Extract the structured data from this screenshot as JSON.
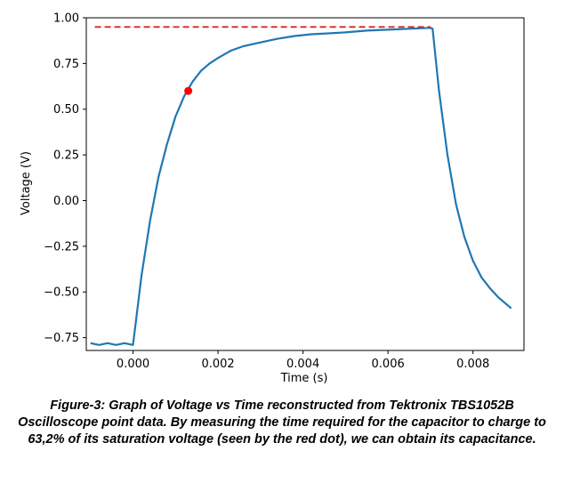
{
  "chart_data": {
    "type": "line",
    "title": "",
    "xlabel": "Time (s)",
    "ylabel": "Voltage (V)",
    "xlim": [
      -0.0011,
      0.0092
    ],
    "ylim": [
      -0.82,
      1.0
    ],
    "x_ticks": [
      0.0,
      0.002,
      0.004,
      0.006,
      0.008
    ],
    "x_tick_labels": [
      "0.000",
      "0.002",
      "0.004",
      "0.006",
      "0.008"
    ],
    "y_ticks": [
      -0.75,
      -0.5,
      -0.25,
      0.0,
      0.25,
      0.5,
      0.75,
      1.0
    ],
    "y_tick_labels": [
      "−0.75",
      "−0.50",
      "−0.25",
      "0.00",
      "0.25",
      "0.50",
      "0.75",
      "1.00"
    ],
    "grid": false,
    "series": [
      {
        "color": "#1f77b4",
        "x": [
          -0.001,
          -0.0008,
          -0.0006,
          -0.0004,
          -0.0002,
          0.0,
          0.0002,
          0.0004,
          0.0006,
          0.0008,
          0.001,
          0.0012,
          0.0014,
          0.0016,
          0.0018,
          0.002,
          0.0023,
          0.0026,
          0.003,
          0.0034,
          0.0038,
          0.0042,
          0.0046,
          0.005,
          0.0055,
          0.006,
          0.0065,
          0.007,
          0.00705,
          0.0072,
          0.0074,
          0.0076,
          0.0078,
          0.008,
          0.0082,
          0.0084,
          0.0086,
          0.0088,
          0.0089
        ],
        "y": [
          -0.78,
          -0.79,
          -0.78,
          -0.79,
          -0.78,
          -0.79,
          -0.41,
          -0.11,
          0.13,
          0.31,
          0.46,
          0.57,
          0.65,
          0.71,
          0.75,
          0.78,
          0.82,
          0.845,
          0.865,
          0.885,
          0.9,
          0.91,
          0.915,
          0.92,
          0.93,
          0.935,
          0.94,
          0.945,
          0.94,
          0.6,
          0.25,
          -0.02,
          -0.2,
          -0.33,
          -0.42,
          -0.48,
          -0.53,
          -0.57,
          -0.59
        ]
      },
      {
        "color": "#d62728",
        "style": "dashed",
        "x": [
          -0.0009,
          0.007
        ],
        "y": [
          0.95,
          0.95
        ]
      }
    ],
    "markers": [
      {
        "color": "#ff0000",
        "x": 0.0013,
        "y": 0.6
      }
    ]
  },
  "caption": "Figure-3: Graph of Voltage vs Time reconstructed from Tektronix TBS1052B Oscilloscope point data. By measuring the time required for the capacitor to charge to 63,2% of its saturation voltage (seen by the red dot), we can obtain its capacitance."
}
